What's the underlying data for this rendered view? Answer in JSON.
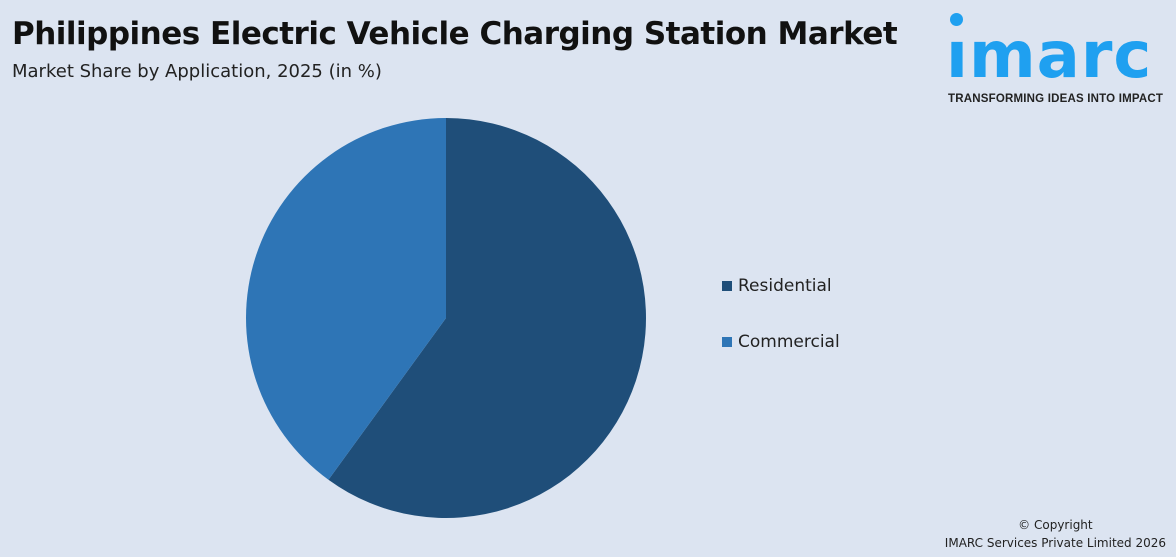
{
  "title": "Philippines Electric Vehicle Charging Station Market",
  "subtitle": "Market Share by Application, 2025 (in %)",
  "logo": {
    "text": "imarc",
    "tagline": "TRANSFORMING IDEAS INTO IMPACT",
    "color": "#1fa0f0"
  },
  "chart_data": {
    "type": "pie",
    "title": "Philippines Electric Vehicle Charging Station Market",
    "subtitle": "Market Share by Application, 2025 (in %)",
    "categories": [
      "Residential",
      "Commercial"
    ],
    "values": [
      60,
      40
    ],
    "colors": [
      "#1f4e79",
      "#2e75b6"
    ],
    "start": "12 o'clock, clockwise",
    "legend_position": "right"
  },
  "footer": {
    "copyright": "© Copyright",
    "company": "IMARC Services Private Limited 2026"
  }
}
